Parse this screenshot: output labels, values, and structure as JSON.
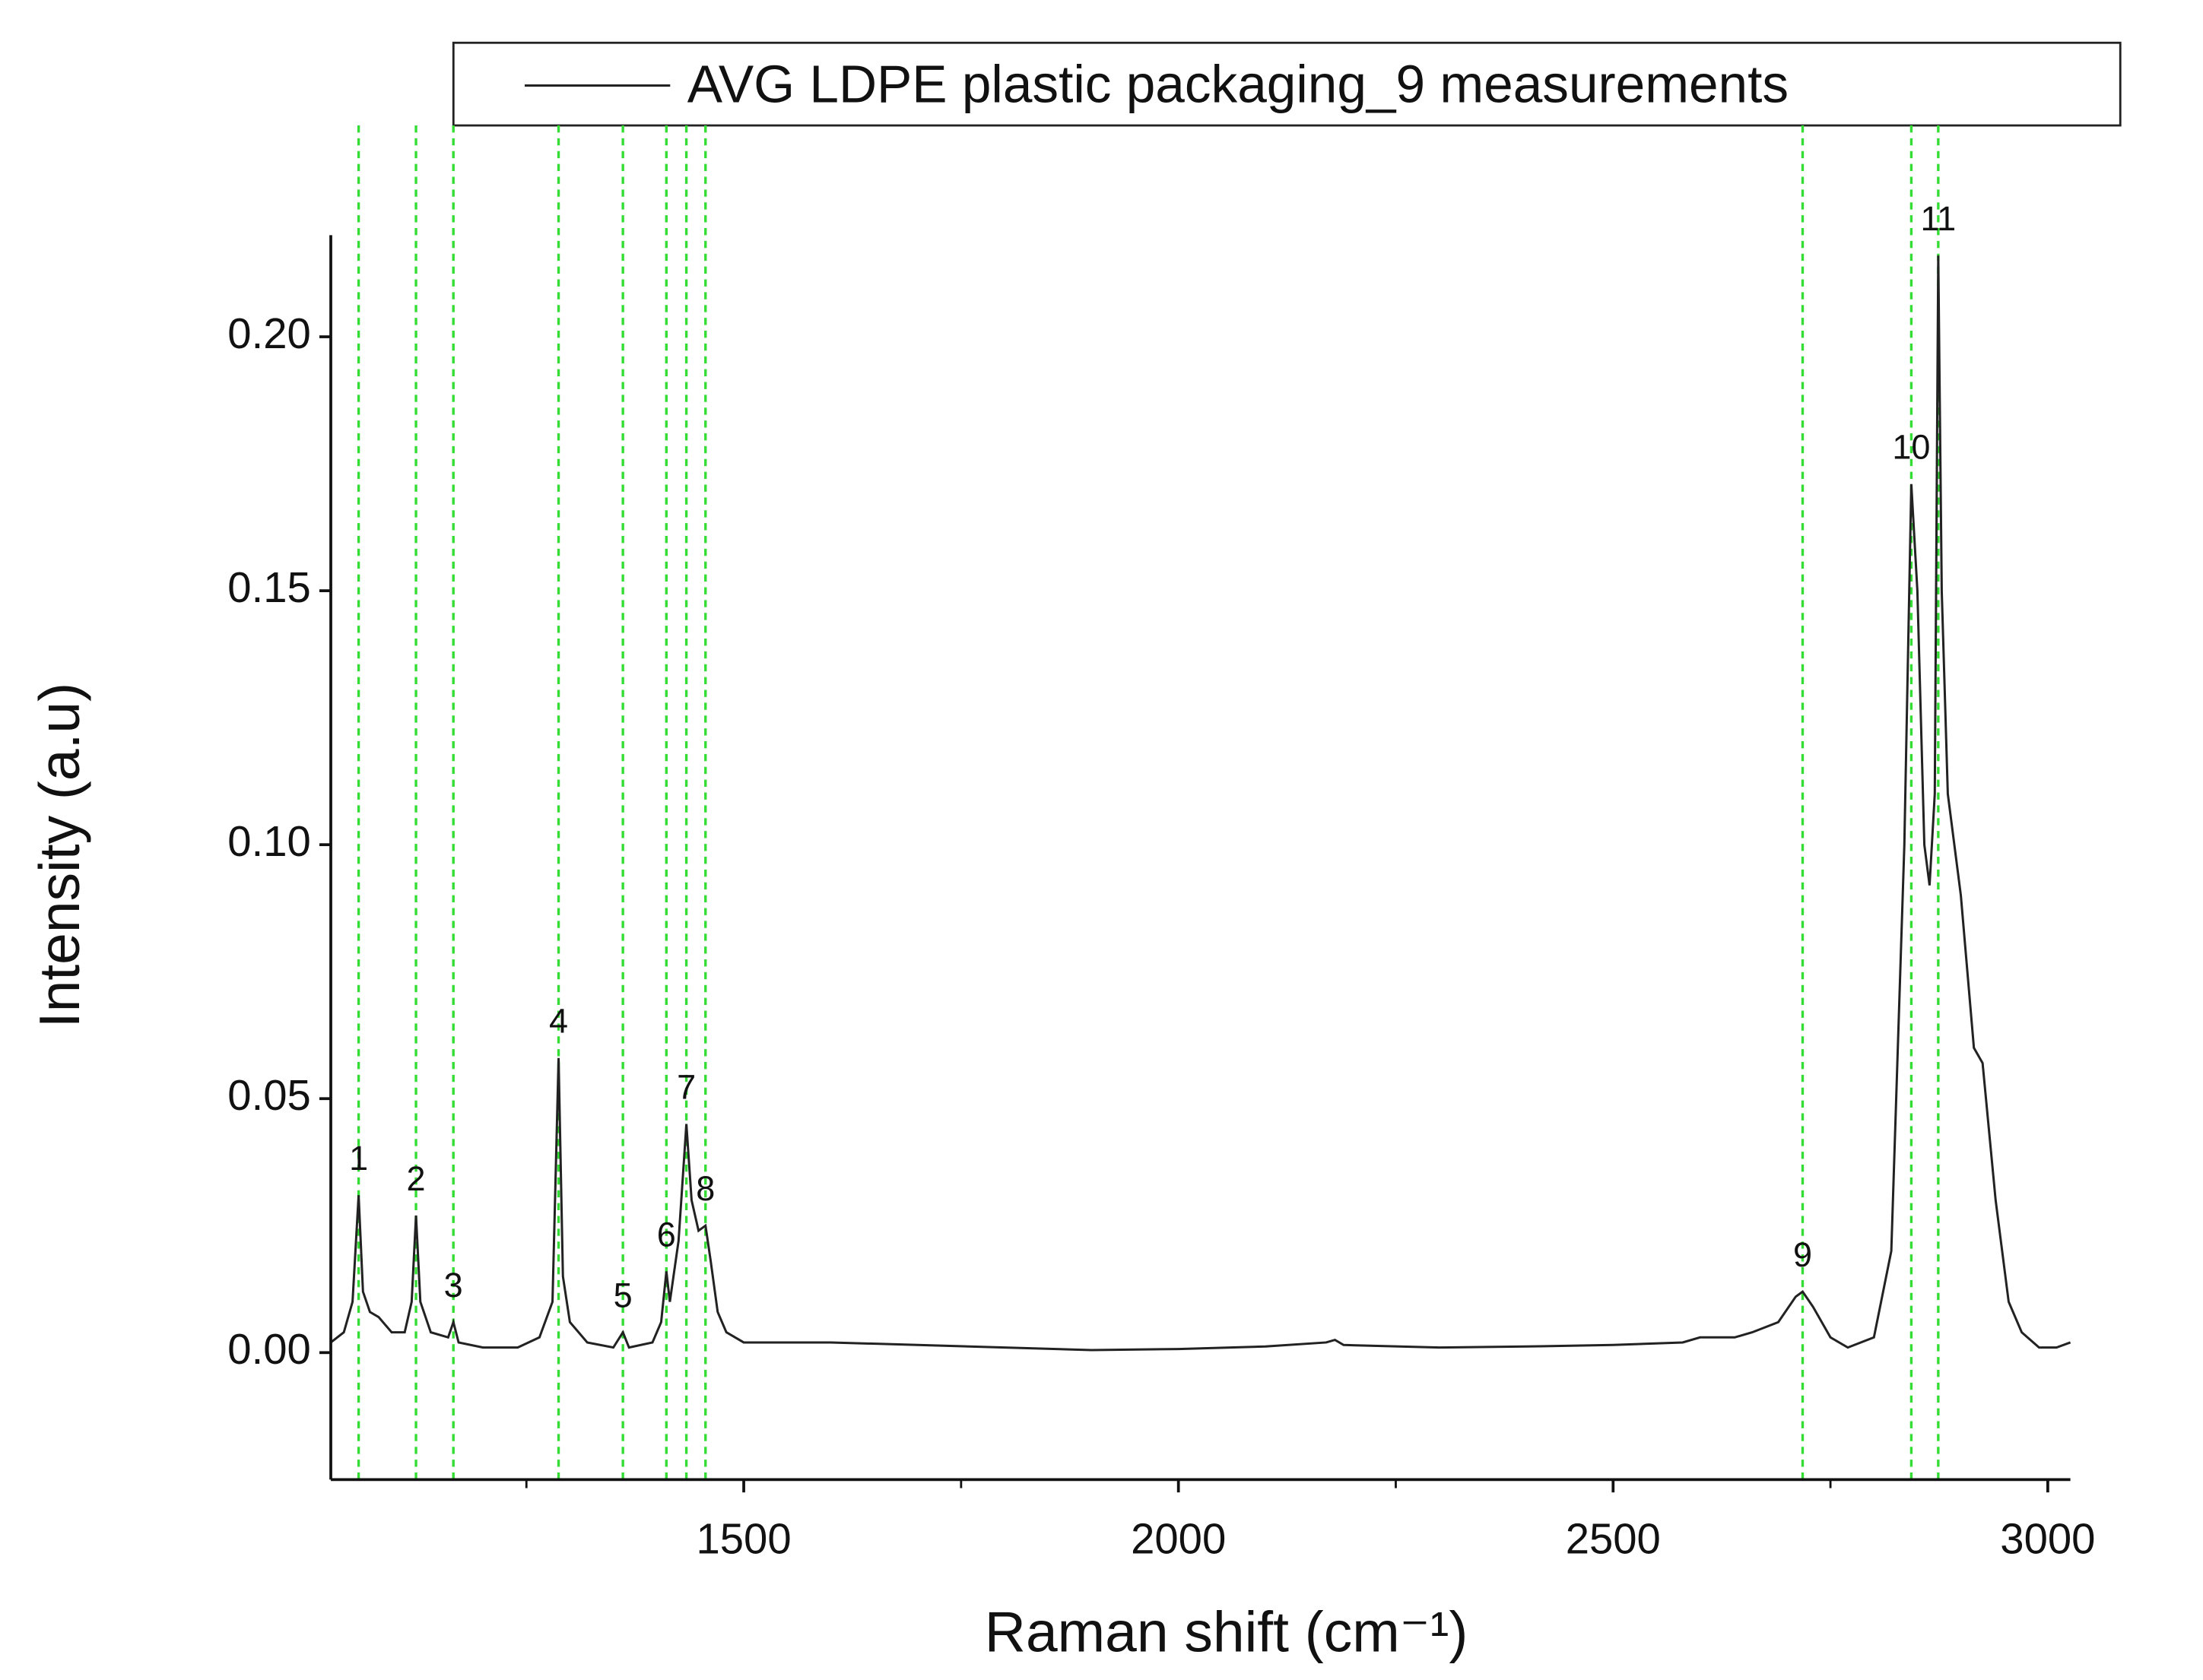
{
  "chart_data": {
    "type": "line",
    "legend_position": "top",
    "x_label": "Raman shift (cm⁻¹)",
    "y_label": "Intensity (a.u)",
    "xlim": [
      1025,
      3026
    ],
    "ylim": [
      -0.025,
      0.22
    ],
    "xticks": [
      1500,
      2000,
      2500,
      3000
    ],
    "x_minor_ticks": [
      1250,
      1750,
      2250,
      2750
    ],
    "yticks": [
      {
        "value": 0,
        "label": "0.00"
      },
      {
        "value": 0.05,
        "label": "0.05"
      },
      {
        "value": 0.1,
        "label": "0.10"
      },
      {
        "value": 0.15,
        "label": "0.15"
      },
      {
        "value": 0.2,
        "label": "0.20"
      }
    ],
    "series": [
      {
        "name": "AVG LDPE plastic packaging_9 measurements",
        "color": "#222222",
        "x": [
          1025,
          1040,
          1050,
          1057,
          1062,
          1070,
          1080,
          1095,
          1110,
          1118,
          1123,
          1128,
          1140,
          1160,
          1166,
          1172,
          1200,
          1240,
          1265,
          1280,
          1287,
          1292,
          1300,
          1320,
          1350,
          1361,
          1368,
          1395,
          1405,
          1411,
          1415,
          1425,
          1434,
          1440,
          1448,
          1456,
          1462,
          1470,
          1480,
          1500,
          1600,
          1700,
          1800,
          1900,
          2000,
          2100,
          2170,
          2180,
          2190,
          2300,
          2400,
          2500,
          2580,
          2600,
          2640,
          2660,
          2690,
          2710,
          2718,
          2730,
          2750,
          2770,
          2800,
          2820,
          2835,
          2843,
          2850,
          2858,
          2864,
          2870,
          2874,
          2878,
          2885,
          2900,
          2915,
          2925,
          2940,
          2955,
          2970,
          2990,
          3010,
          3026
        ],
        "values": [
          0.002,
          0.004,
          0.01,
          0.031,
          0.012,
          0.008,
          0.007,
          0.004,
          0.004,
          0.01,
          0.027,
          0.01,
          0.004,
          0.003,
          0.006,
          0.002,
          0.001,
          0.001,
          0.003,
          0.01,
          0.058,
          0.015,
          0.006,
          0.002,
          0.001,
          0.004,
          0.001,
          0.002,
          0.006,
          0.016,
          0.01,
          0.022,
          0.045,
          0.03,
          0.024,
          0.025,
          0.018,
          0.008,
          0.004,
          0.002,
          0.002,
          0.0015,
          0.001,
          0.0005,
          0.0007,
          0.0012,
          0.002,
          0.0025,
          0.0015,
          0.001,
          0.0012,
          0.0015,
          0.002,
          0.003,
          0.003,
          0.004,
          0.006,
          0.011,
          0.012,
          0.009,
          0.003,
          0.001,
          0.003,
          0.02,
          0.1,
          0.171,
          0.15,
          0.1,
          0.092,
          0.11,
          0.216,
          0.15,
          0.11,
          0.09,
          0.06,
          0.057,
          0.03,
          0.01,
          0.004,
          0.001,
          0.001,
          0.002
        ]
      }
    ],
    "reference_line_color": "#33dd33",
    "peaks": [
      {
        "label": "1",
        "x": 1057,
        "y": 0.031,
        "color": "#e0201b"
      },
      {
        "label": "2",
        "x": 1123,
        "y": 0.027,
        "color": "#e0201b"
      },
      {
        "label": "3",
        "x": 1166,
        "y": 0.006,
        "color": "#e0201b"
      },
      {
        "label": "4",
        "x": 1287,
        "y": 0.058,
        "color": "#111111"
      },
      {
        "label": "5",
        "x": 1361,
        "y": 0.004,
        "color": "#e0201b"
      },
      {
        "label": "6",
        "x": 1411,
        "y": 0.016,
        "color": "#e0201b"
      },
      {
        "label": "7",
        "x": 1434,
        "y": 0.045,
        "color": "#e0201b"
      },
      {
        "label": "8",
        "x": 1456,
        "y": 0.025,
        "color": "#111111"
      },
      {
        "label": "9",
        "x": 2718,
        "y": 0.012,
        "color": "#e0201b"
      },
      {
        "label": "10",
        "x": 2843,
        "y": 0.171,
        "color": "#111111"
      },
      {
        "label": "11",
        "x": 2874,
        "y": 0.216,
        "color": "#111111"
      }
    ]
  }
}
